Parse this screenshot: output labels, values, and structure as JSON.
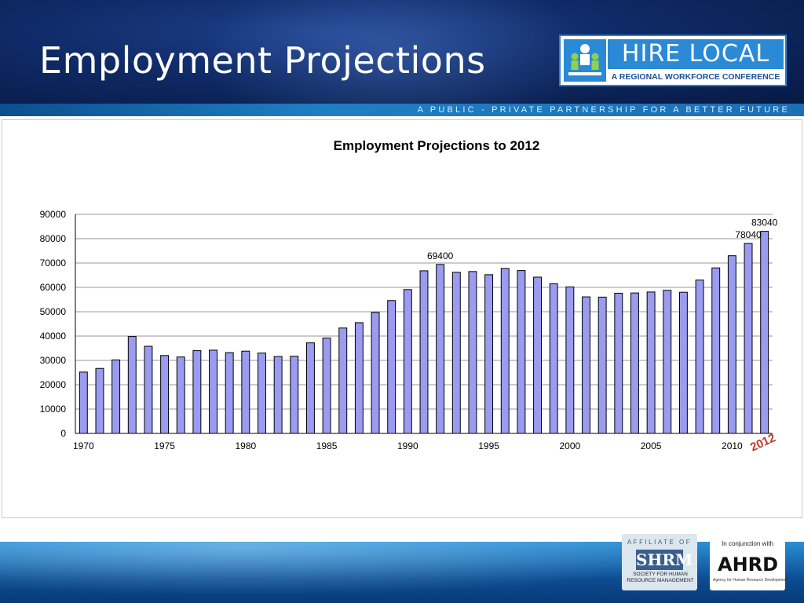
{
  "slide": {
    "title": "Employment Projections",
    "tagline": "A PUBLIC - PRIVATE PARTNERSHIP FOR A BETTER FUTURE"
  },
  "logo": {
    "title": "HIRE LOCAL",
    "subtitle": "A REGIONAL WORKFORCE CONFERENCE"
  },
  "sponsors": {
    "shrm": {
      "top": "AFFILIATE OF",
      "mark": "SHRM",
      "bottom": "SOCIETY FOR HUMAN RESOURCE MANAGEMENT"
    },
    "ahrd": {
      "top": "In conjunction with",
      "mark": "AHRD",
      "bottom": "Agency for Human Resource Development"
    }
  },
  "colors": {
    "bar_fill": "#9b9bf2",
    "bar_stroke": "#000000",
    "grid": "#9a9a9a",
    "accent_blue": "#2a8ad6",
    "highlight_label": "#c0392b"
  },
  "chart_data": {
    "type": "bar",
    "title": "Employment Projections to 2012",
    "xlabel": "",
    "ylabel": "",
    "ylim": [
      0,
      90000
    ],
    "yticks": [
      "0",
      "10000",
      "20000",
      "30000",
      "40000",
      "50000",
      "60000",
      "70000",
      "80000",
      "90000"
    ],
    "grid": true,
    "categories": [
      1970,
      1971,
      1972,
      1973,
      1974,
      1975,
      1976,
      1977,
      1978,
      1979,
      1980,
      1981,
      1982,
      1983,
      1984,
      1985,
      1986,
      1987,
      1988,
      1989,
      1990,
      1991,
      1992,
      1993,
      1994,
      1995,
      1996,
      1997,
      1998,
      1999,
      2000,
      2001,
      2002,
      2003,
      2004,
      2005,
      2006,
      2007,
      2008,
      2009,
      2010,
      2011,
      2012
    ],
    "values": [
      25200,
      26700,
      30200,
      39800,
      35800,
      32000,
      31400,
      34000,
      34200,
      33200,
      33800,
      33000,
      31600,
      31700,
      37200,
      39200,
      43300,
      45500,
      49700,
      54600,
      59100,
      66800,
      69400,
      66200,
      66500,
      65200,
      67800,
      66900,
      64200,
      61500,
      60200,
      56100,
      56000,
      57600,
      57700,
      58100,
      58800,
      58000,
      63000,
      68000,
      73000,
      78040,
      83040
    ],
    "xtick_labels": [
      "1970",
      "1975",
      "1980",
      "1985",
      "1990",
      "1995",
      "2000",
      "2005",
      "2010"
    ],
    "highlight_tick_label": "2012",
    "data_labels": [
      {
        "category": 1992,
        "text": "69400"
      },
      {
        "category": 2011,
        "text": "78040"
      },
      {
        "category": 2012,
        "text": "83040"
      }
    ]
  }
}
